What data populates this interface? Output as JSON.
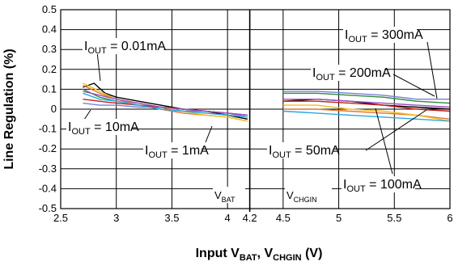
{
  "chart_data": {
    "type": "line",
    "title": "",
    "xlabel": {
      "main": "Input V",
      "sub1": "BAT",
      "mid": ", V",
      "sub2": "CHGIN",
      "unit": " (V)"
    },
    "ylabel": "Line Regulation (%)",
    "xlim": [
      2.5,
      6
    ],
    "ylim": [
      -0.5,
      0.5
    ],
    "x_ticks": [
      2.5,
      3,
      3.5,
      4,
      4.2,
      4.5,
      5,
      5.5,
      6
    ],
    "x_tick_labels": [
      "2.5",
      "3",
      "3.5",
      "4",
      "4.2",
      "4.5",
      "5",
      "5.5",
      "6"
    ],
    "y_ticks": [
      -0.5,
      -0.4,
      -0.3,
      -0.2,
      -0.1,
      0,
      0.1,
      0.2,
      0.3,
      0.4,
      0.5
    ],
    "y_tick_labels": [
      "-0.5",
      "-0.4",
      "-0.3",
      "-0.2",
      "-0.1",
      "0",
      "0.1",
      "0.2",
      "0.3",
      "0.4",
      "0.5"
    ],
    "grid": true,
    "divider_x": 4.2,
    "region_labels": [
      {
        "main": "V",
        "sub": "BAT"
      },
      {
        "main": "V",
        "sub": "CHGIN"
      }
    ],
    "annotations": [
      {
        "pre": "I",
        "sub": "OUT",
        "post": " = 0.01mA"
      },
      {
        "pre": "I",
        "sub": "OUT",
        "post": " = 10mA"
      },
      {
        "pre": "I",
        "sub": "OUT",
        "post": " = 1mA"
      },
      {
        "pre": "I",
        "sub": "OUT",
        "post": " = 300mA"
      },
      {
        "pre": "I",
        "sub": "OUT",
        "post": " = 200mA"
      },
      {
        "pre": "I",
        "sub": "OUT",
        "post": " = 50mA"
      },
      {
        "pre": "I",
        "sub": "OUT",
        "post": " = 100mA"
      }
    ],
    "series": [
      {
        "color": "#000000",
        "vbat": [
          [
            2.7,
            0.11
          ],
          [
            2.8,
            0.13
          ],
          [
            2.9,
            0.08
          ],
          [
            3.0,
            0.06
          ],
          [
            3.2,
            0.04
          ],
          [
            3.4,
            0.02
          ],
          [
            3.6,
            0.0
          ],
          [
            3.8,
            -0.01
          ],
          [
            4.0,
            -0.03
          ],
          [
            4.18,
            -0.05
          ]
        ],
        "vchgin": [
          [
            4.5,
            0.04
          ],
          [
            4.8,
            0.05
          ],
          [
            5.1,
            0.04
          ],
          [
            5.4,
            0.02
          ],
          [
            5.7,
            0.01
          ],
          [
            6.0,
            0.0
          ]
        ]
      },
      {
        "color": "#7a7fd6",
        "vbat": [
          [
            2.7,
            0.03
          ],
          [
            2.85,
            0.02
          ],
          [
            3.0,
            0.02
          ],
          [
            3.2,
            0.01
          ],
          [
            3.4,
            0.01
          ],
          [
            3.6,
            -0.01
          ],
          [
            3.8,
            -0.01
          ],
          [
            4.0,
            -0.02
          ],
          [
            4.18,
            -0.04
          ]
        ],
        "vchgin": [
          [
            4.5,
            0.09
          ],
          [
            4.8,
            0.09
          ],
          [
            5.1,
            0.08
          ],
          [
            5.4,
            0.07
          ],
          [
            5.7,
            0.05
          ],
          [
            6.0,
            0.05
          ]
        ]
      },
      {
        "color": "#e8742c",
        "vbat": [
          [
            2.7,
            0.12
          ],
          [
            2.85,
            0.08
          ],
          [
            3.0,
            0.05
          ],
          [
            3.2,
            0.02
          ],
          [
            3.4,
            0.0
          ],
          [
            3.6,
            -0.02
          ],
          [
            3.8,
            -0.03
          ],
          [
            4.0,
            -0.04
          ],
          [
            4.18,
            -0.06
          ]
        ],
        "vchgin": [
          [
            4.5,
            0.0
          ],
          [
            4.8,
            0.0
          ],
          [
            5.1,
            -0.01
          ],
          [
            5.4,
            -0.02
          ],
          [
            5.7,
            -0.03
          ],
          [
            6.0,
            -0.05
          ]
        ]
      },
      {
        "color": "#2e8b3e",
        "vbat": [
          [
            2.7,
            0.1
          ],
          [
            2.85,
            0.06
          ],
          [
            3.0,
            0.04
          ],
          [
            3.2,
            0.02
          ],
          [
            3.4,
            0.01
          ],
          [
            3.6,
            0.0
          ],
          [
            3.8,
            -0.01
          ],
          [
            4.0,
            -0.02
          ],
          [
            4.18,
            -0.03
          ]
        ],
        "vchgin": [
          [
            4.5,
            0.08
          ],
          [
            4.8,
            0.08
          ],
          [
            5.1,
            0.07
          ],
          [
            5.4,
            0.06
          ],
          [
            5.7,
            0.04
          ],
          [
            6.0,
            0.03
          ]
        ]
      },
      {
        "color": "#f0c020",
        "vbat": [
          [
            2.7,
            0.13
          ],
          [
            2.85,
            0.09
          ],
          [
            3.0,
            0.05
          ],
          [
            3.2,
            0.03
          ],
          [
            3.4,
            0.01
          ],
          [
            3.6,
            -0.01
          ],
          [
            3.8,
            -0.03
          ],
          [
            4.0,
            -0.04
          ],
          [
            4.18,
            -0.06
          ]
        ],
        "vchgin": [
          [
            4.5,
            0.02
          ],
          [
            4.8,
            0.02
          ],
          [
            5.1,
            0.0
          ],
          [
            5.4,
            -0.01
          ],
          [
            5.7,
            -0.03
          ],
          [
            6.0,
            -0.06
          ]
        ]
      },
      {
        "color": "#c41e1e",
        "vbat": [
          [
            2.7,
            0.05
          ],
          [
            2.85,
            0.04
          ],
          [
            3.0,
            0.03
          ],
          [
            3.2,
            0.02
          ],
          [
            3.4,
            0.01
          ],
          [
            3.6,
            0.0
          ],
          [
            3.8,
            -0.01
          ],
          [
            4.0,
            -0.02
          ],
          [
            4.18,
            -0.03
          ]
        ],
        "vchgin": [
          [
            4.5,
            0.04
          ],
          [
            4.8,
            0.04
          ],
          [
            5.1,
            0.03
          ],
          [
            5.4,
            0.02
          ],
          [
            5.7,
            0.0
          ],
          [
            6.0,
            -0.01
          ]
        ]
      },
      {
        "color": "#29a9e0",
        "vbat": [
          [
            2.7,
            0.08
          ],
          [
            2.85,
            0.05
          ],
          [
            3.0,
            0.04
          ],
          [
            3.2,
            0.02
          ],
          [
            3.4,
            0.0
          ],
          [
            3.6,
            -0.01
          ],
          [
            3.8,
            -0.02
          ],
          [
            4.0,
            -0.03
          ],
          [
            4.18,
            -0.04
          ]
        ],
        "vchgin": [
          [
            4.5,
            -0.01
          ],
          [
            4.8,
            -0.02
          ],
          [
            5.1,
            -0.03
          ],
          [
            5.4,
            -0.04
          ],
          [
            5.7,
            -0.05
          ],
          [
            6.0,
            -0.06
          ]
        ]
      },
      {
        "color": "#9b4fc0",
        "vbat": [
          [
            2.7,
            0.09
          ],
          [
            2.85,
            0.07
          ],
          [
            3.0,
            0.05
          ],
          [
            3.2,
            0.03
          ],
          [
            3.4,
            0.01
          ],
          [
            3.6,
            0.0
          ],
          [
            3.8,
            -0.01
          ],
          [
            4.0,
            -0.02
          ],
          [
            4.18,
            -0.03
          ]
        ],
        "vchgin": [
          [
            4.5,
            0.05
          ],
          [
            4.8,
            0.05
          ],
          [
            5.1,
            0.04
          ],
          [
            5.4,
            0.03
          ],
          [
            5.7,
            0.02
          ],
          [
            6.0,
            0.01
          ]
        ]
      }
    ]
  }
}
